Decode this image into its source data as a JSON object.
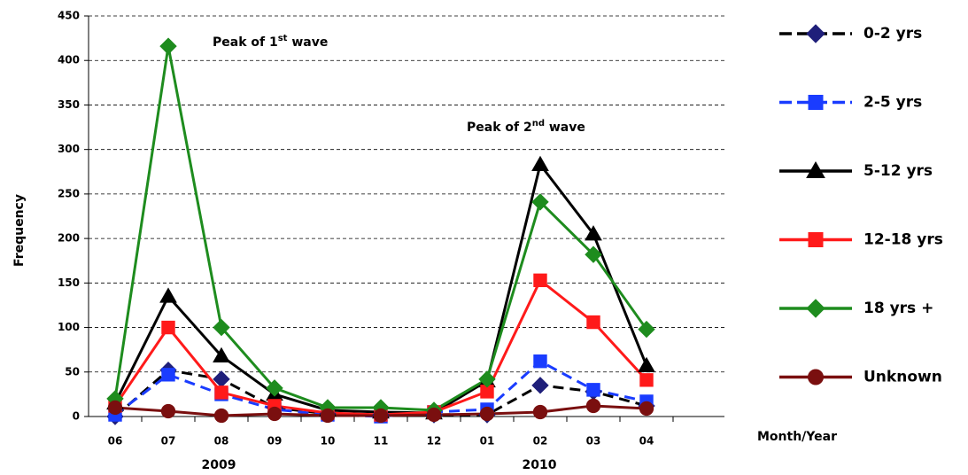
{
  "chart_data": {
    "type": "line",
    "y_label": "Frequency",
    "x_label": "Month/Year",
    "categories": [
      "06",
      "07",
      "08",
      "09",
      "10",
      "11",
      "12",
      "01",
      "02",
      "03",
      "04"
    ],
    "year_groups": [
      "2009",
      "2010"
    ],
    "ylim": [
      0,
      450
    ],
    "yticks": [
      0,
      50,
      100,
      150,
      200,
      250,
      300,
      350,
      400,
      450
    ],
    "grid": true,
    "annotations": [
      {
        "parts": [
          "Peak of 1",
          "st",
          " wave"
        ]
      },
      {
        "parts": [
          "Peak of 2",
          "nd",
          " wave"
        ]
      }
    ],
    "series": [
      {
        "name": "0-2 yrs",
        "color": "#1f1f7a",
        "line_color": "#000000",
        "dashed": true,
        "marker": "diamond",
        "values": [
          0,
          52,
          42,
          10,
          3,
          2,
          2,
          2,
          35,
          28,
          12
        ]
      },
      {
        "name": "2-5 yrs",
        "color": "#1a3cff",
        "line_color": "#1a3cff",
        "dashed": true,
        "marker": "square",
        "values": [
          2,
          47,
          25,
          8,
          2,
          0,
          5,
          8,
          62,
          30,
          17
        ]
      },
      {
        "name": "5-12 yrs",
        "color": "#000000",
        "line_color": "#000000",
        "dashed": false,
        "marker": "triangle",
        "values": [
          15,
          135,
          68,
          25,
          7,
          5,
          4,
          40,
          283,
          205,
          57
        ]
      },
      {
        "name": "12-18 yrs",
        "color": "#ff1a1a",
        "line_color": "#ff1a1a",
        "dashed": false,
        "marker": "square",
        "values": [
          12,
          100,
          27,
          12,
          4,
          2,
          5,
          28,
          153,
          106,
          41
        ]
      },
      {
        "name": "18 yrs +",
        "color": "#1e8c1e",
        "line_color": "#1e8c1e",
        "dashed": false,
        "marker": "diamond",
        "values": [
          20,
          416,
          100,
          32,
          10,
          10,
          7,
          42,
          241,
          182,
          98
        ]
      },
      {
        "name": "Unknown",
        "color": "#7a0f0f",
        "line_color": "#7a0f0f",
        "dashed": false,
        "marker": "circle",
        "values": [
          10,
          6,
          1,
          3,
          1,
          1,
          2,
          3,
          5,
          12,
          9
        ]
      }
    ]
  }
}
